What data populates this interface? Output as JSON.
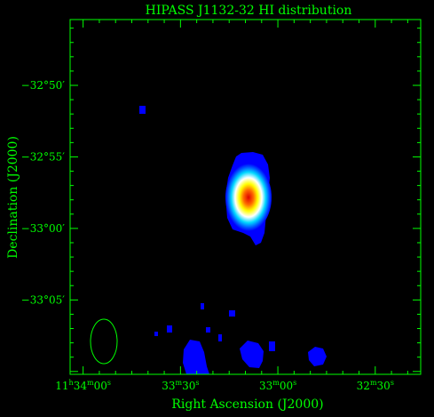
{
  "chart_data": {
    "type": "heatmap",
    "title": "HIPASS J1132-32   HI distribution",
    "xlabel": "Right Ascension (J2000)",
    "ylabel": "Declination (J2000)",
    "x_ticks": [
      {
        "ra_sec_offset": 0,
        "h": "11",
        "m": "34",
        "s": "00"
      },
      {
        "ra_sec_offset": 30,
        "h": "",
        "m": "33",
        "s": "30"
      },
      {
        "ra_sec_offset": 60,
        "h": "",
        "m": "33",
        "s": "00"
      },
      {
        "ra_sec_offset": 90,
        "h": "",
        "m": "32",
        "s": "30"
      }
    ],
    "y_ticks": [
      {
        "dec_arcmin": -50,
        "label": "−32°50′"
      },
      {
        "dec_arcmin": -55,
        "label": "−32°55′"
      },
      {
        "dec_arcmin": -60,
        "label": "−33°00′"
      },
      {
        "dec_arcmin": -65,
        "label": "−33°05′"
      }
    ],
    "xlim_sec_offset": [
      -4,
      104
    ],
    "ylim_dec_arcmin": [
      -70.2,
      -45.4
    ],
    "source": {
      "ra_sec_offset": 48,
      "dec_arcmin": -57.8
    },
    "beam": {
      "ra_sec_offset": 2.6,
      "dec_arcmin": -68,
      "shape": "ellipse"
    },
    "colormap": [
      "#0000ff",
      "#00c8ff",
      "#ffffff",
      "#ffff00",
      "#ff0000"
    ],
    "axis_color": "#00ff00"
  }
}
